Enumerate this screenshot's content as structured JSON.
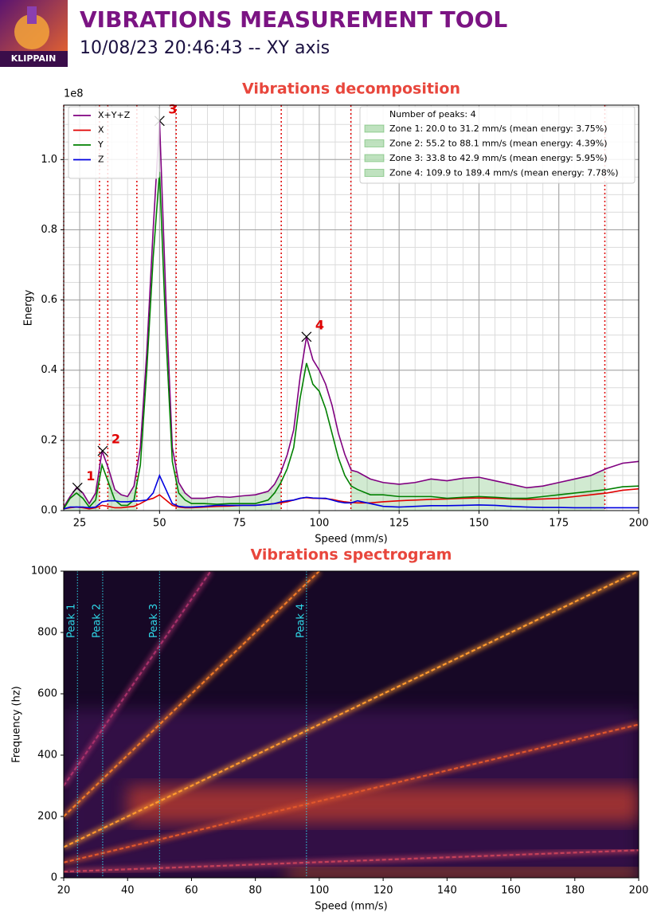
{
  "header": {
    "title": "VIBRATIONS MEASUREMENT TOOL",
    "subtitle": "10/08/23 20:46:43 -- XY axis",
    "logo_text": "KLIPPAIN"
  },
  "chart_data": [
    {
      "type": "line",
      "title": "Vibrations decomposition",
      "x_label": "Speed (mm/s)",
      "y_label": "Energy",
      "y_offset_label": "1e8",
      "xlim": [
        20,
        200
      ],
      "ylim": [
        0,
        1.155
      ],
      "xticks": [
        25,
        50,
        75,
        100,
        125,
        150,
        175,
        200
      ],
      "yticks": [
        {
          "value": 0,
          "label": "0.0"
        },
        0.2,
        0.4,
        0.6,
        0.8,
        {
          "value": 1,
          "label": "1.0"
        }
      ],
      "grid": true,
      "minor_grid": true,
      "legend": "upper left",
      "x": [
        20,
        22,
        24,
        26,
        28,
        30,
        32,
        34,
        36,
        38,
        40,
        42,
        44,
        46,
        48,
        50,
        52,
        54,
        56,
        58,
        60,
        64,
        68,
        72,
        76,
        80,
        84,
        86,
        88,
        90,
        92,
        94,
        96,
        98,
        100,
        102,
        104,
        106,
        108,
        110,
        112,
        116,
        120,
        125,
        130,
        135,
        140,
        145,
        150,
        155,
        160,
        165,
        170,
        175,
        180,
        185,
        190,
        195,
        200
      ],
      "series": [
        {
          "name": "X+Y+Z",
          "color": "#800080",
          "values": [
            0.01,
            0.04,
            0.065,
            0.05,
            0.02,
            0.05,
            0.17,
            0.12,
            0.06,
            0.045,
            0.04,
            0.07,
            0.18,
            0.45,
            0.8,
            1.11,
            0.6,
            0.18,
            0.08,
            0.05,
            0.035,
            0.035,
            0.04,
            0.038,
            0.042,
            0.045,
            0.055,
            0.075,
            0.11,
            0.16,
            0.23,
            0.38,
            0.495,
            0.43,
            0.4,
            0.36,
            0.3,
            0.22,
            0.16,
            0.115,
            0.11,
            0.09,
            0.08,
            0.075,
            0.08,
            0.09,
            0.085,
            0.092,
            0.095,
            0.085,
            0.075,
            0.065,
            0.07,
            0.08,
            0.09,
            0.1,
            0.12,
            0.135,
            0.14
          ]
        },
        {
          "name": "X",
          "color": "#e00000",
          "values": [
            0.005,
            0.008,
            0.01,
            0.008,
            0.005,
            0.008,
            0.015,
            0.012,
            0.008,
            0.008,
            0.01,
            0.012,
            0.02,
            0.03,
            0.035,
            0.045,
            0.03,
            0.015,
            0.01,
            0.008,
            0.008,
            0.01,
            0.012,
            0.013,
            0.015,
            0.015,
            0.018,
            0.02,
            0.022,
            0.025,
            0.03,
            0.035,
            0.037,
            0.035,
            0.035,
            0.034,
            0.032,
            0.028,
            0.025,
            0.023,
            0.022,
            0.022,
            0.025,
            0.028,
            0.03,
            0.032,
            0.033,
            0.035,
            0.036,
            0.035,
            0.033,
            0.032,
            0.033,
            0.035,
            0.04,
            0.045,
            0.05,
            0.058,
            0.062
          ]
        },
        {
          "name": "Y",
          "color": "#008000",
          "values": [
            0.005,
            0.035,
            0.05,
            0.035,
            0.01,
            0.03,
            0.13,
            0.08,
            0.03,
            0.015,
            0.015,
            0.03,
            0.13,
            0.4,
            0.72,
            0.965,
            0.5,
            0.14,
            0.05,
            0.03,
            0.02,
            0.02,
            0.018,
            0.02,
            0.02,
            0.02,
            0.03,
            0.05,
            0.08,
            0.12,
            0.18,
            0.32,
            0.42,
            0.36,
            0.34,
            0.29,
            0.22,
            0.15,
            0.1,
            0.07,
            0.06,
            0.045,
            0.045,
            0.04,
            0.04,
            0.04,
            0.035,
            0.038,
            0.04,
            0.038,
            0.035,
            0.035,
            0.04,
            0.045,
            0.05,
            0.055,
            0.06,
            0.068,
            0.07
          ]
        },
        {
          "name": "Z",
          "color": "#0000e0",
          "values": [
            0.005,
            0.01,
            0.01,
            0.01,
            0.008,
            0.01,
            0.025,
            0.028,
            0.028,
            0.025,
            0.025,
            0.027,
            0.028,
            0.03,
            0.05,
            0.1,
            0.06,
            0.02,
            0.012,
            0.01,
            0.01,
            0.012,
            0.015,
            0.015,
            0.015,
            0.015,
            0.018,
            0.02,
            0.025,
            0.028,
            0.03,
            0.035,
            0.038,
            0.036,
            0.035,
            0.035,
            0.03,
            0.025,
            0.022,
            0.022,
            0.028,
            0.02,
            0.012,
            0.01,
            0.012,
            0.014,
            0.014,
            0.015,
            0.016,
            0.015,
            0.012,
            0.01,
            0.009,
            0.009,
            0.008,
            0.008,
            0.008,
            0.008,
            0.008
          ]
        }
      ],
      "peaks": [
        {
          "label": "1",
          "x": 24.3,
          "y": 0.065
        },
        {
          "label": "2",
          "x": 32.2,
          "y": 0.17
        },
        {
          "label": "3",
          "x": 50,
          "y": 1.11
        },
        {
          "label": "4",
          "x": 96,
          "y": 0.495
        }
      ],
      "peaks_title": "Number of peaks: 4",
      "zone_color": "#2ca02c",
      "zones": [
        {
          "label": "Zone 1: 20.0 to 31.2 mm/s (mean energy: 3.75%)",
          "range": [
            20.0,
            31.2
          ]
        },
        {
          "label": "Zone 2: 55.2 to 88.1 mm/s (mean energy: 4.39%)",
          "range": [
            55.2,
            88.1
          ]
        },
        {
          "label": "Zone 3: 33.8 to 42.9 mm/s (mean energy: 5.95%)",
          "range": [
            33.8,
            42.9
          ]
        },
        {
          "label": "Zone 4: 109.9 to 189.4 mm/s (mean energy: 7.78%)",
          "range": [
            109.9,
            189.4
          ]
        }
      ]
    },
    {
      "type": "spectrogram",
      "title": "Vibrations spectrogram",
      "x_label": "Speed (mm/s)",
      "y_label": "Frequency (hz)",
      "xlim": [
        20,
        200
      ],
      "ylim": [
        0,
        1000
      ],
      "xticks": [
        20,
        40,
        60,
        80,
        100,
        120,
        140,
        160,
        180,
        200
      ],
      "yticks": [
        0,
        200,
        400,
        600,
        800,
        1000
      ],
      "background": "#170826",
      "bands": [
        {
          "x": [
            40,
            200
          ],
          "y": [
            180,
            300
          ],
          "color": "#c8402a"
        },
        {
          "x": [
            90,
            200
          ],
          "y": [
            0,
            30
          ],
          "color": "#e0661e"
        }
      ],
      "ridges": [
        {
          "x": [
            20,
            200
          ],
          "y": [
            100,
            1000
          ],
          "color": "#ff9a2e"
        },
        {
          "x": [
            20,
            100
          ],
          "y": [
            200,
            1000
          ],
          "color": "#f07a28"
        },
        {
          "x": [
            20,
            200
          ],
          "y": [
            50,
            500
          ],
          "color": "#e0562c"
        },
        {
          "x": [
            20,
            66
          ],
          "y": [
            300,
            1000
          ],
          "color": "#a8306a"
        },
        {
          "x": [
            20,
            200
          ],
          "y": [
            20,
            90
          ],
          "color": "#c4405a"
        }
      ],
      "peak_color": "#2fd8e8",
      "peaks": [
        {
          "label": "Peak 1",
          "x": 24.3
        },
        {
          "label": "Peak 2",
          "x": 32.2
        },
        {
          "label": "Peak 3",
          "x": 50
        },
        {
          "label": "Peak 4",
          "x": 96
        }
      ]
    }
  ]
}
